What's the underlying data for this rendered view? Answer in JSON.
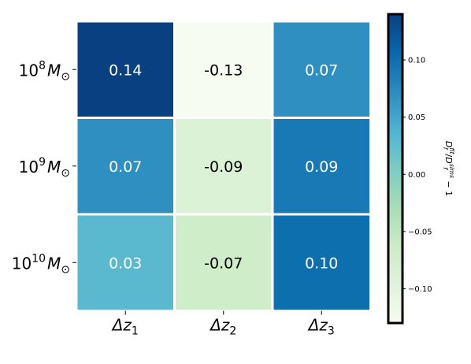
{
  "chart_data": {
    "type": "heatmap",
    "title": "",
    "rows": [
      {
        "base": "10",
        "exp": "8",
        "unit": "M",
        "sub": "⊙"
      },
      {
        "base": "10",
        "exp": "9",
        "unit": "M",
        "sub": "⊙"
      },
      {
        "base": "10",
        "exp": "10",
        "unit": "M",
        "sub": "⊙"
      }
    ],
    "columns": [
      {
        "main": "Δz",
        "sub": "1"
      },
      {
        "main": "Δz",
        "sub": "2"
      },
      {
        "main": "Δz",
        "sub": "3"
      }
    ],
    "values": [
      [
        0.14,
        -0.13,
        0.07
      ],
      [
        0.07,
        -0.09,
        0.09
      ],
      [
        0.03,
        -0.07,
        0.1
      ]
    ],
    "cell_labels": [
      [
        "0.14",
        "-0.13",
        "0.07"
      ],
      [
        "0.07",
        "-0.09",
        "0.09"
      ],
      [
        "0.03",
        "-0.07",
        "0.10"
      ]
    ],
    "colormap": "GnBu",
    "vmin": -0.13,
    "vmax": 0.14,
    "colorbar": {
      "ticks": [
        0.1,
        0.05,
        0.0,
        -0.05,
        -0.1
      ],
      "tick_labels": [
        "0.10",
        "0.05",
        "0.00",
        "−0.05",
        "−0.10"
      ],
      "label_parts": {
        "d1": "D",
        "sup1": "fit",
        "sub1": "f",
        "slash": "/",
        "d2": "D",
        "sup2": "sims",
        "sub2": "f",
        "tail": " − 1"
      }
    },
    "grid": false,
    "colors": {
      "gnbu": [
        "#f7fcf0",
        "#e0f3db",
        "#ccebc5",
        "#a8ddb5",
        "#7bccc4",
        "#4eb3d3",
        "#2b8cbe",
        "#0868ac",
        "#084081"
      ],
      "text_light": "#ffffff",
      "text_dark": "#000000",
      "cell_border": "#ffffff",
      "colorbar_frame": "#000000"
    }
  }
}
